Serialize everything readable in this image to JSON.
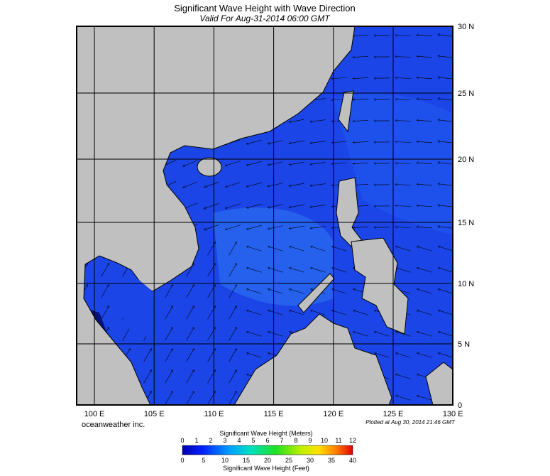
{
  "header": {
    "title": "Significant Wave Height with Wave Direction",
    "subtitle": "Valid For Aug-31-2014 06:00 GMT"
  },
  "map": {
    "lon_labels": [
      "100 E",
      "105 E",
      "110 E",
      "115 E",
      "120 E",
      "125 E",
      "130 E"
    ],
    "lat_labels": [
      "30 N",
      "25 N",
      "20 N",
      "15 N",
      "10 N",
      "5 N",
      "0"
    ]
  },
  "footer": {
    "credit": "oceanweather inc.",
    "plotted": "Plotted at Aug 30, 2014 21:46 GMT"
  },
  "colorbar": {
    "title_top": "Significant Wave Height (Meters)",
    "meters": [
      0,
      1,
      2,
      3,
      4,
      5,
      6,
      7,
      8,
      9,
      10,
      11,
      12
    ],
    "title_bottom": "Significant Wave Height (Feet)",
    "feet": [
      0,
      5,
      10,
      15,
      20,
      25,
      30,
      35,
      40
    ]
  }
}
